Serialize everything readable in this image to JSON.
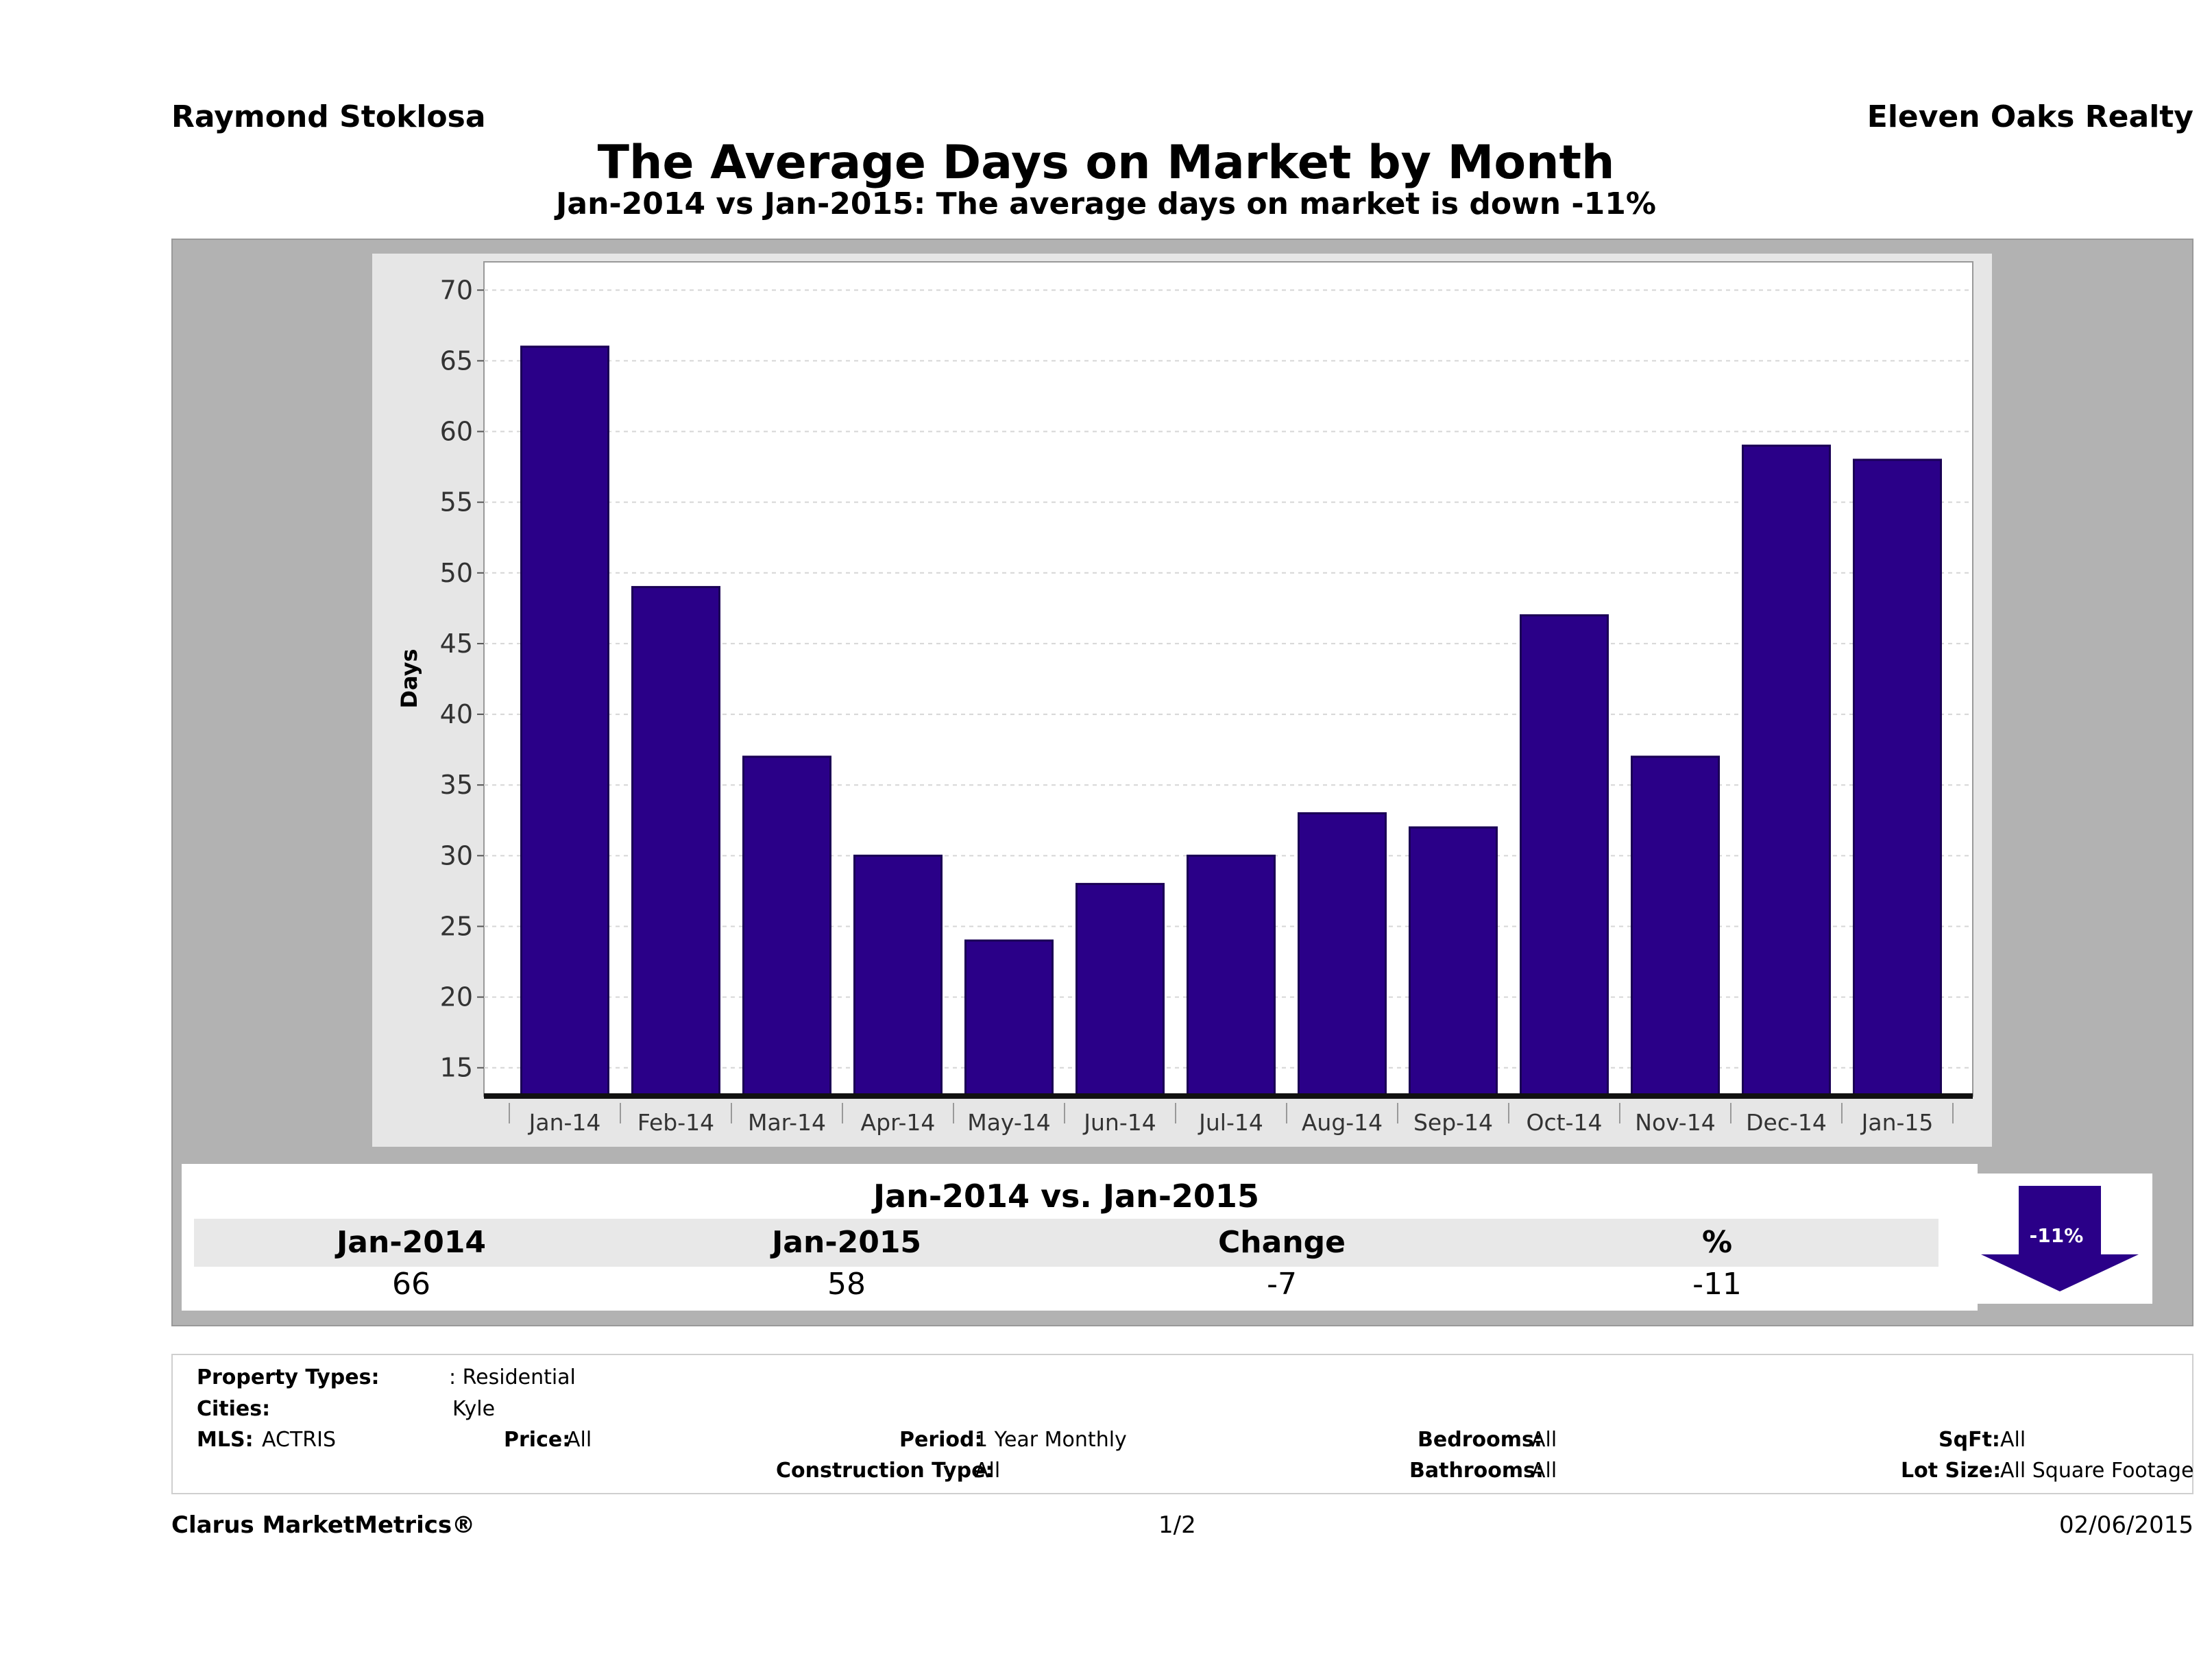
{
  "header": {
    "agent": "Raymond Stoklosa",
    "brokerage": "Eleven Oaks Realty",
    "title": "The Average Days on Market by Month",
    "subtitle": "Jan-2014 vs Jan-2015: The average days on market is down -11%"
  },
  "chart_data": {
    "type": "bar",
    "categories": [
      "Jan-14",
      "Feb-14",
      "Mar-14",
      "Apr-14",
      "May-14",
      "Jun-14",
      "Jul-14",
      "Aug-14",
      "Sep-14",
      "Oct-14",
      "Nov-14",
      "Dec-14",
      "Jan-15"
    ],
    "values": [
      66,
      49,
      37,
      30,
      24,
      28,
      30,
      33,
      32,
      47,
      37,
      59,
      58
    ],
    "ylabel": "Days",
    "xlabel": "",
    "ylim": [
      13,
      72
    ],
    "yticks": [
      15,
      20,
      25,
      30,
      35,
      40,
      45,
      50,
      55,
      60,
      65,
      70
    ],
    "grid": true,
    "bar_color": "#2a0088"
  },
  "comparison": {
    "title": "Jan-2014 vs. Jan-2015",
    "headers": [
      "Jan-2014",
      "Jan-2015",
      "Change",
      "%"
    ],
    "values": [
      "66",
      "58",
      "-7",
      "-11"
    ],
    "arrow_label": "-11%",
    "arrow_direction": "down"
  },
  "filters": {
    "property_types_label": "Property Types:",
    "property_types_value": ": Residential",
    "cities_label": "Cities:",
    "cities_value": "Kyle",
    "mls_label": "MLS:",
    "mls_value": "ACTRIS",
    "price_label": "Price:",
    "price_value": "All",
    "period_label": "Period:",
    "period_value": "1 Year Monthly",
    "construction_label": "Construction Type:",
    "construction_value": "All",
    "bedrooms_label": "Bedrooms:",
    "bedrooms_value": "All",
    "bathrooms_label": "Bathrooms:",
    "bathrooms_value": "All",
    "sqft_label": "SqFt:",
    "sqft_value": "All",
    "lotsize_label": "Lot Size:",
    "lotsize_value": "All Square Footage"
  },
  "footer": {
    "brand": "Clarus MarketMetrics®",
    "page": "1/2",
    "date": "02/06/2015"
  }
}
